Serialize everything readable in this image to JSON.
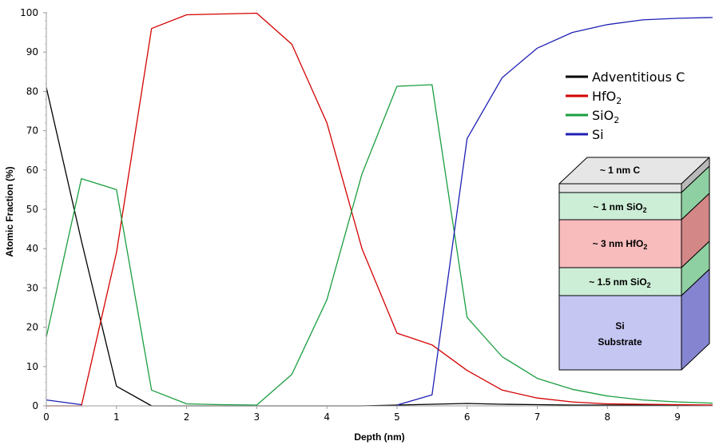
{
  "chart_data": {
    "type": "line",
    "xlabel": "Depth (nm)",
    "ylabel": "Atomic Fraction (%)",
    "xlim": [
      0,
      9.5
    ],
    "ylim": [
      0,
      100
    ],
    "x_ticks": [
      "0",
      "1",
      "2",
      "3",
      "4",
      "5",
      "6",
      "7",
      "8",
      "9"
    ],
    "y_ticks": [
      "0",
      "10",
      "20",
      "30",
      "40",
      "50",
      "60",
      "70",
      "80",
      "90",
      "100"
    ],
    "grid": false,
    "legend_position": "right",
    "x": [
      0,
      0.5,
      1,
      1.5,
      2,
      2.5,
      3,
      3.5,
      4,
      4.5,
      5,
      5.5,
      6,
      6.5,
      7,
      7.5,
      8,
      8.5,
      9,
      9.5
    ],
    "series": [
      {
        "name": "Adventitious C",
        "legend_main": "Adventitious C",
        "legend_sub": "",
        "color": "#000000",
        "values": [
          81,
          42,
          5,
          0,
          0,
          0,
          0,
          0,
          0,
          0,
          0.2,
          0.4,
          0.6,
          0.4,
          0.3,
          0.2,
          0.2,
          0.2,
          0.2,
          0.2
        ]
      },
      {
        "name": "HfO2",
        "legend_main": "HfO",
        "legend_sub": "2",
        "color": "#d40000",
        "values": [
          0,
          0,
          39,
          96,
          99.5,
          99.7,
          99.9,
          92,
          72,
          40,
          18.5,
          15.5,
          9,
          4,
          2,
          1,
          0.5,
          0.4,
          0.3,
          0.2
        ]
      },
      {
        "name": "SiO2",
        "legend_main": "SiO",
        "legend_sub": "2",
        "color": "#1a9e3f",
        "values": [
          17.5,
          57.8,
          55,
          4,
          0.5,
          0.3,
          0.2,
          8,
          27,
          59,
          81.3,
          81.7,
          22.5,
          12.5,
          7,
          4.2,
          2.5,
          1.5,
          1,
          0.7
        ]
      },
      {
        "name": "Si",
        "legend_main": "Si",
        "legend_sub": "",
        "color": "#1f1fb4",
        "values": [
          1.5,
          0.3,
          null,
          null,
          null,
          null,
          null,
          null,
          null,
          null,
          0.2,
          2.8,
          68,
          83.5,
          91,
          95,
          97,
          98.2,
          98.6,
          98.8
        ]
      }
    ]
  },
  "layer_stack": [
    {
      "main": "~ 1 nm C",
      "sub": "",
      "tail": "",
      "front": "#e6e6e6",
      "side": "#b9b9b9"
    },
    {
      "main": "~ 1 nm SiO",
      "sub": "2",
      "tail": "",
      "front": "#cdeed6",
      "side": "#8fd0a2"
    },
    {
      "main": "~ 3 nm HfO",
      "sub": "2",
      "tail": "",
      "front": "#f8bcbc",
      "side": "#d48787"
    },
    {
      "main": "~ 1.5 nm SiO",
      "sub": "2",
      "tail": "",
      "front": "#cdeed6",
      "side": "#8fd0a2"
    },
    {
      "main": "Si",
      "sub": "",
      "tail": "Substrate",
      "front": "#c6c6f3",
      "side": "#8484d0"
    }
  ]
}
